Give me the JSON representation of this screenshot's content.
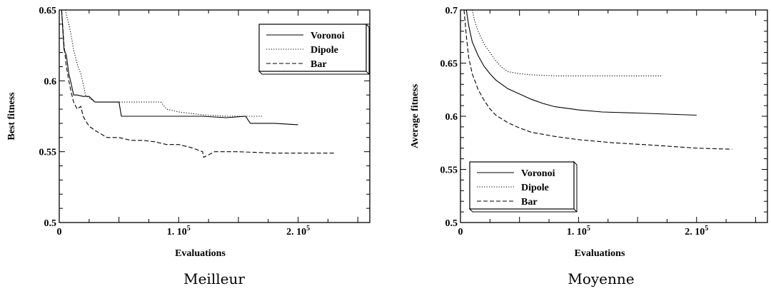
{
  "chart_data": [
    {
      "type": "line",
      "caption": "Meilleur",
      "xlabel": "Evaluations",
      "ylabel": "Best fitness",
      "xlim": [
        0,
        260000
      ],
      "ylim": [
        0.5,
        0.65
      ],
      "xticks": [
        {
          "value": 0,
          "label": "0"
        },
        {
          "value": 100000,
          "label": "1. 10",
          "exp": "5"
        },
        {
          "value": 200000,
          "label": "2. 10",
          "exp": "5"
        }
      ],
      "yticks": [
        {
          "value": 0.5,
          "label": "0.5"
        },
        {
          "value": 0.55,
          "label": "0.55"
        },
        {
          "value": 0.6,
          "label": "0.6"
        },
        {
          "value": 0.65,
          "label": "0.65"
        }
      ],
      "legend_position": "top-right",
      "series": [
        {
          "name": "Voronoi",
          "style": "solid",
          "x": [
            2000,
            4000,
            6000,
            8000,
            10000,
            12000,
            15000,
            20000,
            25000,
            30000,
            40000,
            50000,
            52000,
            60000,
            80000,
            100000,
            120000,
            140000,
            156000,
            160000,
            180000,
            200000
          ],
          "y": [
            0.65,
            0.622,
            0.618,
            0.605,
            0.598,
            0.59,
            0.59,
            0.589,
            0.589,
            0.585,
            0.585,
            0.585,
            0.575,
            0.575,
            0.575,
            0.575,
            0.575,
            0.574,
            0.575,
            0.57,
            0.57,
            0.569
          ]
        },
        {
          "name": "Dipole",
          "style": "dotted",
          "x": [
            5000,
            8000,
            10000,
            12000,
            15000,
            18000,
            20000,
            22000,
            25000,
            28000,
            30000,
            40000,
            60000,
            85000,
            90000,
            100000,
            120000,
            140000,
            160000,
            170000
          ],
          "y": [
            0.65,
            0.64,
            0.632,
            0.622,
            0.612,
            0.605,
            0.598,
            0.59,
            0.588,
            0.586,
            0.585,
            0.585,
            0.585,
            0.585,
            0.58,
            0.578,
            0.576,
            0.575,
            0.575,
            0.575
          ]
        },
        {
          "name": "Bar",
          "style": "dashed",
          "x": [
            2000,
            4000,
            6000,
            8000,
            10000,
            12000,
            15000,
            18000,
            20000,
            22000,
            25000,
            30000,
            40000,
            50000,
            60000,
            70000,
            80000,
            90000,
            100000,
            110000,
            120000,
            121000,
            130000,
            150000,
            180000,
            200000,
            230000
          ],
          "y": [
            0.65,
            0.625,
            0.61,
            0.6,
            0.592,
            0.585,
            0.58,
            0.582,
            0.575,
            0.572,
            0.568,
            0.565,
            0.56,
            0.56,
            0.558,
            0.558,
            0.557,
            0.555,
            0.555,
            0.553,
            0.55,
            0.546,
            0.55,
            0.55,
            0.549,
            0.549,
            0.549
          ]
        }
      ]
    },
    {
      "type": "line",
      "caption": "Moyenne",
      "xlabel": "Evaluations",
      "ylabel": "Average fitness",
      "xlim": [
        0,
        260000
      ],
      "ylim": [
        0.5,
        0.7
      ],
      "xticks": [
        {
          "value": 0,
          "label": "0"
        },
        {
          "value": 100000,
          "label": "1. 10",
          "exp": "5"
        },
        {
          "value": 200000,
          "label": "2. 10",
          "exp": "5"
        }
      ],
      "yticks": [
        {
          "value": 0.5,
          "label": "0.5"
        },
        {
          "value": 0.55,
          "label": "0.55"
        },
        {
          "value": 0.6,
          "label": "0.6"
        },
        {
          "value": 0.65,
          "label": "0.65"
        },
        {
          "value": 0.7,
          "label": "0.7"
        }
      ],
      "legend_position": "bottom-left",
      "series": [
        {
          "name": "Voronoi",
          "style": "solid",
          "x": [
            5000,
            7000,
            10000,
            15000,
            20000,
            25000,
            30000,
            40000,
            50000,
            60000,
            70000,
            80000,
            100000,
            120000,
            150000,
            200000
          ],
          "y": [
            0.7,
            0.685,
            0.67,
            0.657,
            0.647,
            0.64,
            0.634,
            0.626,
            0.621,
            0.616,
            0.612,
            0.609,
            0.606,
            0.604,
            0.603,
            0.601
          ]
        },
        {
          "name": "Dipole",
          "style": "dotted",
          "x": [
            10000,
            12000,
            15000,
            20000,
            25000,
            30000,
            35000,
            40000,
            50000,
            60000,
            80000,
            100000,
            130000,
            170000
          ],
          "y": [
            0.7,
            0.69,
            0.68,
            0.668,
            0.66,
            0.652,
            0.646,
            0.642,
            0.64,
            0.639,
            0.638,
            0.638,
            0.638,
            0.638
          ]
        },
        {
          "name": "Bar",
          "style": "dashed",
          "x": [
            3000,
            5000,
            7000,
            10000,
            15000,
            20000,
            25000,
            30000,
            40000,
            50000,
            60000,
            80000,
            100000,
            130000,
            160000,
            200000,
            230000
          ],
          "y": [
            0.7,
            0.675,
            0.655,
            0.64,
            0.625,
            0.615,
            0.607,
            0.601,
            0.594,
            0.589,
            0.585,
            0.581,
            0.578,
            0.575,
            0.573,
            0.57,
            0.569
          ]
        }
      ]
    }
  ]
}
